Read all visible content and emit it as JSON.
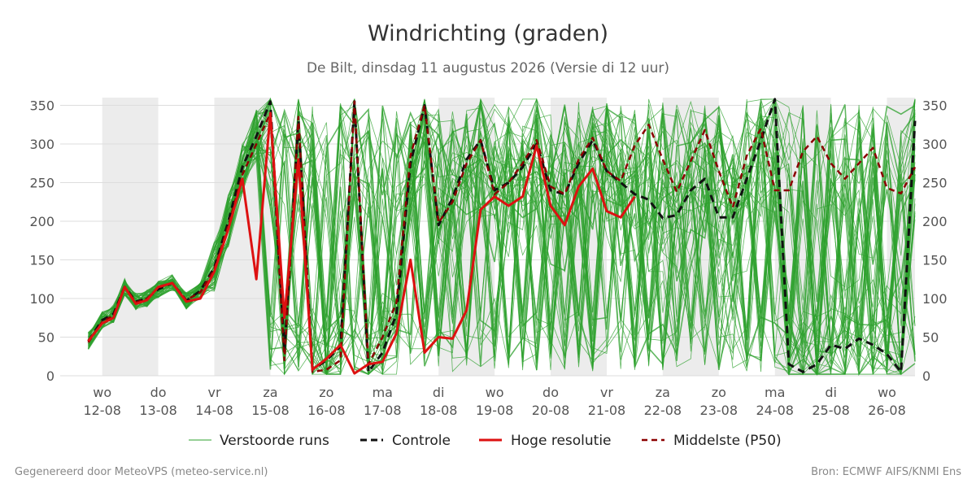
{
  "header": {
    "title": "Windrichting (graden)",
    "subtitle": "De Bilt, dinsdag 11 augustus 2026 (Versie di 12 uur)"
  },
  "footer": {
    "left": "Gegenereerd door MeteoVPS (meteo-service.nl)",
    "right": "Bron: ECMWF AIFS/KNMI Ens"
  },
  "legend": [
    {
      "key": "ensemble",
      "label": "Verstoorde runs"
    },
    {
      "key": "control",
      "label": "Controle"
    },
    {
      "key": "hires",
      "label": "Hoge resolutie"
    },
    {
      "key": "median",
      "label": "Middelste (P50)"
    }
  ],
  "colors": {
    "ensemble": "#2ca02c",
    "control": "#111111",
    "hires": "#dd1111",
    "median": "#8b0000",
    "weekend_band": "#ececec",
    "grid": "#dddddd"
  },
  "chart_data": {
    "type": "line",
    "ylim": [
      0,
      360
    ],
    "yticks": [
      0,
      50,
      100,
      150,
      200,
      250,
      300,
      350
    ],
    "x_unit": "dagen vanaf 12-08",
    "xlim": [
      -0.75,
      14.5
    ],
    "x_ticks": [
      {
        "day": "wo",
        "date": "12-08",
        "x": 0
      },
      {
        "day": "do",
        "date": "13-08",
        "x": 1
      },
      {
        "day": "vr",
        "date": "14-08",
        "x": 2
      },
      {
        "day": "za",
        "date": "15-08",
        "x": 3
      },
      {
        "day": "zo",
        "date": "16-08",
        "x": 4
      },
      {
        "day": "ma",
        "date": "17-08",
        "x": 5
      },
      {
        "day": "di",
        "date": "18-08",
        "x": 6
      },
      {
        "day": "wo",
        "date": "19-08",
        "x": 7
      },
      {
        "day": "do",
        "date": "20-08",
        "x": 8
      },
      {
        "day": "vr",
        "date": "21-08",
        "x": 9
      },
      {
        "day": "za",
        "date": "22-08",
        "x": 10
      },
      {
        "day": "zo",
        "date": "23-08",
        "x": 11
      },
      {
        "day": "ma",
        "date": "24-08",
        "x": 12
      },
      {
        "day": "di",
        "date": "25-08",
        "x": 13
      },
      {
        "day": "wo",
        "date": "26-08",
        "x": 14
      }
    ],
    "shaded_bands": [
      [
        0,
        1
      ],
      [
        2,
        3
      ],
      [
        6,
        7
      ],
      [
        8,
        9
      ],
      [
        10,
        11
      ],
      [
        12,
        13
      ],
      [
        14,
        14.5
      ]
    ],
    "series": [
      {
        "name": "Controle",
        "key": "control",
        "style": "dashed",
        "points": [
          [
            -0.25,
            45
          ],
          [
            -0.0,
            72
          ],
          [
            0.2,
            80
          ],
          [
            0.4,
            115
          ],
          [
            0.6,
            96
          ],
          [
            0.8,
            100
          ],
          [
            1.0,
            112
          ],
          [
            1.25,
            120
          ],
          [
            1.5,
            97
          ],
          [
            1.75,
            110
          ],
          [
            2.0,
            140
          ],
          [
            2.25,
            200
          ],
          [
            2.5,
            270
          ],
          [
            2.75,
            310
          ],
          [
            3.0,
            355
          ],
          [
            3.25,
            30
          ],
          [
            3.5,
            330
          ],
          [
            3.75,
            8
          ],
          [
            4.0,
            20
          ],
          [
            4.25,
            38
          ],
          [
            4.5,
            355
          ],
          [
            4.75,
            5
          ],
          [
            5.0,
            30
          ],
          [
            5.25,
            80
          ],
          [
            5.5,
            275
          ],
          [
            5.75,
            350
          ],
          [
            6.0,
            195
          ],
          [
            6.25,
            230
          ],
          [
            6.5,
            280
          ],
          [
            6.75,
            305
          ],
          [
            7.0,
            240
          ],
          [
            7.25,
            250
          ],
          [
            7.5,
            270
          ],
          [
            7.75,
            300
          ],
          [
            8.0,
            240
          ],
          [
            8.25,
            235
          ],
          [
            8.5,
            275
          ],
          [
            8.75,
            305
          ],
          [
            9.0,
            265
          ],
          [
            9.25,
            250
          ],
          [
            9.5,
            235
          ],
          [
            9.75,
            228
          ],
          [
            10.0,
            204
          ],
          [
            10.25,
            208
          ],
          [
            10.5,
            240
          ],
          [
            10.75,
            255
          ],
          [
            11.0,
            205
          ],
          [
            11.25,
            205
          ],
          [
            11.5,
            255
          ],
          [
            11.75,
            305
          ],
          [
            12.0,
            358
          ],
          [
            12.25,
            15
          ],
          [
            12.5,
            5
          ],
          [
            12.75,
            15
          ],
          [
            13.0,
            40
          ],
          [
            13.25,
            35
          ],
          [
            13.5,
            48
          ],
          [
            13.75,
            40
          ],
          [
            14.0,
            28
          ],
          [
            14.25,
            5
          ],
          [
            14.5,
            330
          ]
        ]
      },
      {
        "name": "Middelste (P50)",
        "key": "median",
        "style": "dashed",
        "points": [
          [
            -0.25,
            43
          ],
          [
            0.0,
            70
          ],
          [
            0.2,
            78
          ],
          [
            0.4,
            115
          ],
          [
            0.6,
            95
          ],
          [
            0.8,
            100
          ],
          [
            1.0,
            114
          ],
          [
            1.25,
            120
          ],
          [
            1.5,
            98
          ],
          [
            1.75,
            108
          ],
          [
            2.0,
            138
          ],
          [
            2.25,
            195
          ],
          [
            2.5,
            260
          ],
          [
            2.75,
            300
          ],
          [
            3.0,
            340
          ],
          [
            3.25,
            20
          ],
          [
            3.5,
            335
          ],
          [
            3.75,
            5
          ],
          [
            4.0,
            8
          ],
          [
            4.25,
            20
          ],
          [
            4.5,
            355
          ],
          [
            4.75,
            15
          ],
          [
            5.0,
            50
          ],
          [
            5.25,
            95
          ],
          [
            5.5,
            285
          ],
          [
            5.75,
            350
          ],
          [
            6.0,
            198
          ],
          [
            6.25,
            225
          ],
          [
            6.5,
            275
          ],
          [
            6.75,
            305
          ],
          [
            7.0,
            235
          ],
          [
            7.25,
            250
          ],
          [
            7.5,
            275
          ],
          [
            7.75,
            305
          ],
          [
            8.0,
            245
          ],
          [
            8.25,
            235
          ],
          [
            8.5,
            280
          ],
          [
            8.75,
            308
          ],
          [
            9.0,
            265
          ],
          [
            9.25,
            252
          ],
          [
            9.5,
            298
          ],
          [
            9.75,
            325
          ],
          [
            10.0,
            280
          ],
          [
            10.25,
            238
          ],
          [
            10.5,
            278
          ],
          [
            10.75,
            318
          ],
          [
            11.0,
            265
          ],
          [
            11.25,
            218
          ],
          [
            11.5,
            285
          ],
          [
            11.75,
            320
          ],
          [
            12.0,
            240
          ],
          [
            12.25,
            240
          ],
          [
            12.5,
            290
          ],
          [
            12.75,
            310
          ],
          [
            13.0,
            275
          ],
          [
            13.25,
            255
          ],
          [
            13.5,
            275
          ],
          [
            13.75,
            295
          ],
          [
            14.0,
            243
          ],
          [
            14.25,
            236
          ],
          [
            14.5,
            270
          ]
        ]
      },
      {
        "name": "Hoge resolutie",
        "key": "hires",
        "style": "solid",
        "points": [
          [
            -0.25,
            45
          ],
          [
            0.0,
            68
          ],
          [
            0.2,
            75
          ],
          [
            0.4,
            115
          ],
          [
            0.6,
            93
          ],
          [
            0.8,
            98
          ],
          [
            1.0,
            115
          ],
          [
            1.25,
            120
          ],
          [
            1.5,
            96
          ],
          [
            1.75,
            100
          ],
          [
            2.0,
            135
          ],
          [
            2.25,
            190
          ],
          [
            2.5,
            255
          ],
          [
            2.75,
            125
          ],
          [
            3.0,
            340
          ],
          [
            3.25,
            75
          ],
          [
            3.5,
            280
          ],
          [
            3.75,
            8
          ],
          [
            4.0,
            22
          ],
          [
            4.25,
            40
          ],
          [
            4.5,
            3
          ],
          [
            4.75,
            15
          ],
          [
            5.0,
            18
          ],
          [
            5.25,
            55
          ],
          [
            5.5,
            150
          ],
          [
            5.75,
            30
          ],
          [
            6.0,
            50
          ],
          [
            6.25,
            48
          ],
          [
            6.5,
            85
          ],
          [
            6.75,
            215
          ],
          [
            7.0,
            232
          ],
          [
            7.25,
            220
          ],
          [
            7.5,
            232
          ],
          [
            7.75,
            298
          ],
          [
            8.0,
            220
          ],
          [
            8.25,
            195
          ],
          [
            8.5,
            245
          ],
          [
            8.75,
            268
          ],
          [
            9.0,
            213
          ],
          [
            9.25,
            205
          ],
          [
            9.5,
            232
          ]
        ]
      }
    ],
    "ensemble": {
      "name": "Verstoorde runs",
      "member_count": 50
    }
  }
}
